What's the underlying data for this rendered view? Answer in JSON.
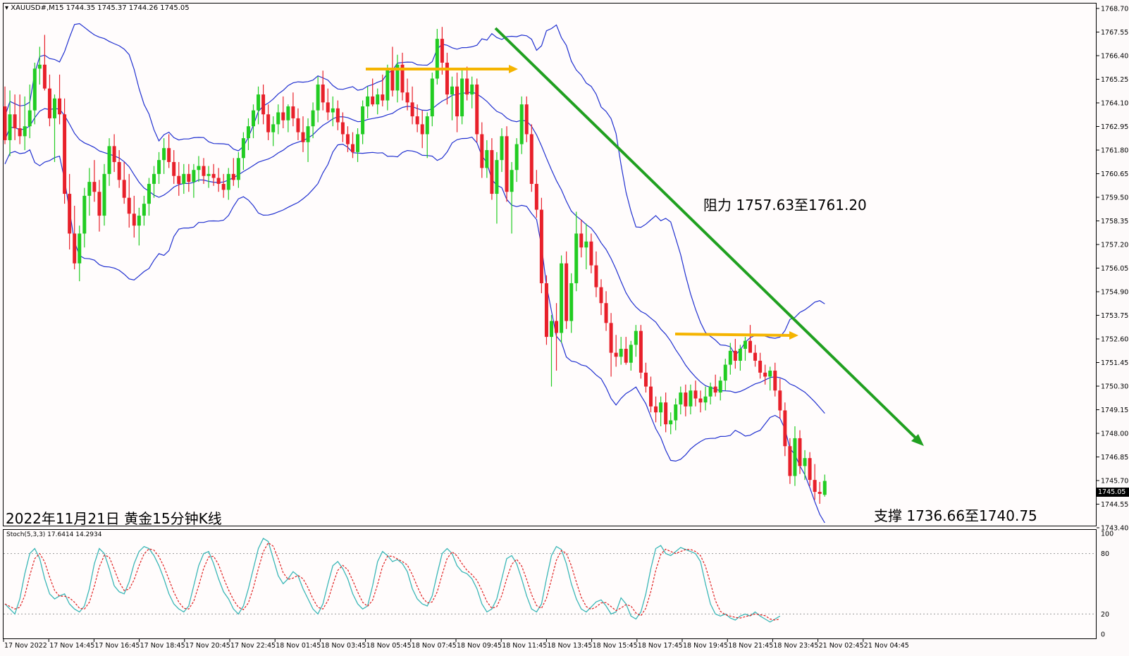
{
  "header": {
    "symbol": "XAUUSD#,M15",
    "ohlc": "1744.35 1745.37 1744.26 1745.05"
  },
  "annotations": {
    "title": "2022年11月21日 黄金15分钟K线",
    "resistance": "阻力 1757.63至1761.20",
    "support": "支撑 1736.66至1740.75"
  },
  "price_axis": {
    "ticks": [
      "1768.70",
      "1767.55",
      "1766.40",
      "1765.25",
      "1764.10",
      "1762.95",
      "1761.80",
      "1760.65",
      "1759.50",
      "1758.35",
      "1757.20",
      "1756.05",
      "1754.90",
      "1753.75",
      "1752.60",
      "1751.45",
      "1750.30",
      "1749.15",
      "1748.00",
      "1746.85",
      "1745.70",
      "1744.55",
      "1743.40"
    ],
    "current_price": "1745.05"
  },
  "stoch": {
    "label": "Stoch(5,3,3) 17.6414 14.2934",
    "levels": [
      "100",
      "80",
      "20",
      "0"
    ]
  },
  "time_axis": {
    "labels": [
      "17 Nov 2022",
      "17 Nov 14:45",
      "17 Nov 16:45",
      "17 Nov 18:45",
      "17 Nov 20:45",
      "17 Nov 22:45",
      "18 Nov 01:45",
      "18 Nov 03:45",
      "18 Nov 05:45",
      "18 Nov 07:45",
      "18 Nov 09:45",
      "18 Nov 11:45",
      "18 Nov 13:45",
      "18 Nov 15:45",
      "18 Nov 17:45",
      "18 Nov 19:45",
      "18 Nov 21:45",
      "18 Nov 23:45",
      "21 Nov 02:45",
      "21 Nov 04:45"
    ]
  },
  "colors": {
    "up_candle": "#22cc22",
    "down_candle": "#e8202a",
    "bands": "#2030d0",
    "trendline": "#20a020",
    "arrows": "#f5b400",
    "stoch_main": "#3bb7b7",
    "stoch_signal": "#e02020"
  },
  "chart_data": {
    "type": "candlestick",
    "timeframe": "M15",
    "symbol": "XAUUSD",
    "ylim": [
      1742.8,
      1768.9
    ],
    "last_close": 1745.05,
    "candles": [
      {
        "o": 1763.9,
        "h": 1764.9,
        "l": 1762.0,
        "c": 1762.2
      },
      {
        "o": 1762.2,
        "h": 1764.7,
        "l": 1761.4,
        "c": 1763.5
      },
      {
        "o": 1763.5,
        "h": 1764.5,
        "l": 1762.2,
        "c": 1762.8
      },
      {
        "o": 1762.8,
        "h": 1764.5,
        "l": 1762.0,
        "c": 1762.4
      },
      {
        "o": 1762.4,
        "h": 1764.4,
        "l": 1761.7,
        "c": 1762.9
      },
      {
        "o": 1762.9,
        "h": 1765.0,
        "l": 1762.3,
        "c": 1763.7
      },
      {
        "o": 1763.7,
        "h": 1766.1,
        "l": 1763.0,
        "c": 1765.8
      },
      {
        "o": 1765.8,
        "h": 1766.9,
        "l": 1765.0,
        "c": 1766.0
      },
      {
        "o": 1766.0,
        "h": 1767.5,
        "l": 1764.7,
        "c": 1764.8
      },
      {
        "o": 1764.8,
        "h": 1765.5,
        "l": 1762.9,
        "c": 1763.3
      },
      {
        "o": 1763.3,
        "h": 1764.5,
        "l": 1761.1,
        "c": 1764.3
      },
      {
        "o": 1764.3,
        "h": 1765.5,
        "l": 1763.0,
        "c": 1763.5
      },
      {
        "o": 1763.5,
        "h": 1764.3,
        "l": 1759.0,
        "c": 1759.5
      },
      {
        "o": 1759.5,
        "h": 1760.5,
        "l": 1756.7,
        "c": 1757.5
      },
      {
        "o": 1757.5,
        "h": 1758.9,
        "l": 1755.7,
        "c": 1756.0
      },
      {
        "o": 1756.0,
        "h": 1757.9,
        "l": 1755.1,
        "c": 1757.5
      },
      {
        "o": 1757.5,
        "h": 1759.8,
        "l": 1756.8,
        "c": 1759.4
      },
      {
        "o": 1759.4,
        "h": 1760.8,
        "l": 1758.4,
        "c": 1760.1
      },
      {
        "o": 1760.1,
        "h": 1761.2,
        "l": 1759.1,
        "c": 1759.6
      },
      {
        "o": 1759.6,
        "h": 1760.2,
        "l": 1757.6,
        "c": 1758.4
      },
      {
        "o": 1758.4,
        "h": 1761.0,
        "l": 1757.9,
        "c": 1760.5
      },
      {
        "o": 1760.5,
        "h": 1762.3,
        "l": 1759.9,
        "c": 1761.9
      },
      {
        "o": 1761.9,
        "h": 1762.5,
        "l": 1760.6,
        "c": 1761.1
      },
      {
        "o": 1761.1,
        "h": 1761.7,
        "l": 1759.8,
        "c": 1760.2
      },
      {
        "o": 1760.2,
        "h": 1761.1,
        "l": 1759.0,
        "c": 1759.3
      },
      {
        "o": 1759.3,
        "h": 1760.5,
        "l": 1757.8,
        "c": 1758.5
      },
      {
        "o": 1758.5,
        "h": 1759.4,
        "l": 1757.3,
        "c": 1757.9
      },
      {
        "o": 1757.9,
        "h": 1758.8,
        "l": 1756.9,
        "c": 1758.4
      },
      {
        "o": 1758.4,
        "h": 1759.4,
        "l": 1757.9,
        "c": 1759.0
      },
      {
        "o": 1759.0,
        "h": 1760.3,
        "l": 1758.4,
        "c": 1760.0
      },
      {
        "o": 1760.0,
        "h": 1760.9,
        "l": 1759.3,
        "c": 1760.5
      },
      {
        "o": 1760.5,
        "h": 1761.6,
        "l": 1760.0,
        "c": 1761.2
      },
      {
        "o": 1761.2,
        "h": 1762.3,
        "l": 1760.5,
        "c": 1761.8
      },
      {
        "o": 1761.8,
        "h": 1762.5,
        "l": 1760.8,
        "c": 1761.1
      },
      {
        "o": 1761.1,
        "h": 1761.7,
        "l": 1760.0,
        "c": 1760.4
      },
      {
        "o": 1760.4,
        "h": 1761.1,
        "l": 1759.4,
        "c": 1760.0
      },
      {
        "o": 1760.0,
        "h": 1761.0,
        "l": 1759.5,
        "c": 1760.5
      },
      {
        "o": 1760.5,
        "h": 1761.0,
        "l": 1759.6,
        "c": 1760.1
      },
      {
        "o": 1760.1,
        "h": 1761.0,
        "l": 1759.3,
        "c": 1760.7
      },
      {
        "o": 1760.7,
        "h": 1761.4,
        "l": 1760.1,
        "c": 1760.9
      },
      {
        "o": 1760.9,
        "h": 1761.3,
        "l": 1760.0,
        "c": 1760.4
      },
      {
        "o": 1760.4,
        "h": 1760.9,
        "l": 1759.8,
        "c": 1760.5
      },
      {
        "o": 1760.5,
        "h": 1761.0,
        "l": 1759.9,
        "c": 1760.3
      },
      {
        "o": 1760.3,
        "h": 1760.8,
        "l": 1759.6,
        "c": 1760.0
      },
      {
        "o": 1760.0,
        "h": 1760.5,
        "l": 1759.3,
        "c": 1759.7
      },
      {
        "o": 1759.7,
        "h": 1760.8,
        "l": 1759.2,
        "c": 1760.5
      },
      {
        "o": 1760.5,
        "h": 1761.3,
        "l": 1759.9,
        "c": 1760.2
      },
      {
        "o": 1760.2,
        "h": 1761.6,
        "l": 1759.8,
        "c": 1761.3
      },
      {
        "o": 1761.3,
        "h": 1762.6,
        "l": 1760.7,
        "c": 1762.3
      },
      {
        "o": 1762.3,
        "h": 1763.3,
        "l": 1761.7,
        "c": 1762.9
      },
      {
        "o": 1762.9,
        "h": 1764.0,
        "l": 1762.3,
        "c": 1763.7
      },
      {
        "o": 1763.7,
        "h": 1764.9,
        "l": 1763.0,
        "c": 1764.5
      },
      {
        "o": 1764.5,
        "h": 1765.0,
        "l": 1763.0,
        "c": 1763.5
      },
      {
        "o": 1763.5,
        "h": 1764.0,
        "l": 1762.2,
        "c": 1762.6
      },
      {
        "o": 1762.6,
        "h": 1763.4,
        "l": 1761.9,
        "c": 1763.0
      },
      {
        "o": 1763.0,
        "h": 1764.0,
        "l": 1762.5,
        "c": 1763.6
      },
      {
        "o": 1763.6,
        "h": 1764.4,
        "l": 1762.8,
        "c": 1763.2
      },
      {
        "o": 1763.2,
        "h": 1764.0,
        "l": 1762.6,
        "c": 1763.9
      },
      {
        "o": 1763.9,
        "h": 1764.6,
        "l": 1762.9,
        "c": 1763.3
      },
      {
        "o": 1763.3,
        "h": 1763.8,
        "l": 1762.2,
        "c": 1762.6
      },
      {
        "o": 1762.6,
        "h": 1763.4,
        "l": 1761.6,
        "c": 1762.1
      },
      {
        "o": 1762.1,
        "h": 1763.3,
        "l": 1761.1,
        "c": 1762.9
      },
      {
        "o": 1762.9,
        "h": 1764.1,
        "l": 1762.3,
        "c": 1763.7
      },
      {
        "o": 1763.7,
        "h": 1765.4,
        "l": 1763.1,
        "c": 1765.0
      },
      {
        "o": 1765.0,
        "h": 1765.7,
        "l": 1763.7,
        "c": 1764.1
      },
      {
        "o": 1764.1,
        "h": 1764.8,
        "l": 1763.2,
        "c": 1763.6
      },
      {
        "o": 1763.6,
        "h": 1764.4,
        "l": 1762.9,
        "c": 1763.8
      },
      {
        "o": 1763.8,
        "h": 1764.2,
        "l": 1762.7,
        "c": 1763.1
      },
      {
        "o": 1763.1,
        "h": 1763.6,
        "l": 1762.1,
        "c": 1762.5
      },
      {
        "o": 1762.5,
        "h": 1762.9,
        "l": 1761.6,
        "c": 1762.0
      },
      {
        "o": 1762.0,
        "h": 1762.6,
        "l": 1761.3,
        "c": 1761.6
      },
      {
        "o": 1761.6,
        "h": 1762.8,
        "l": 1761.1,
        "c": 1762.5
      },
      {
        "o": 1762.5,
        "h": 1764.2,
        "l": 1762.0,
        "c": 1763.9
      },
      {
        "o": 1763.9,
        "h": 1764.9,
        "l": 1763.3,
        "c": 1764.4
      },
      {
        "o": 1764.4,
        "h": 1765.3,
        "l": 1763.9,
        "c": 1764.0
      },
      {
        "o": 1764.0,
        "h": 1764.8,
        "l": 1763.5,
        "c": 1764.5
      },
      {
        "o": 1764.5,
        "h": 1765.5,
        "l": 1763.9,
        "c": 1764.2
      },
      {
        "o": 1764.2,
        "h": 1766.0,
        "l": 1763.7,
        "c": 1765.8
      },
      {
        "o": 1765.8,
        "h": 1766.9,
        "l": 1764.4,
        "c": 1764.7
      },
      {
        "o": 1764.7,
        "h": 1766.5,
        "l": 1764.1,
        "c": 1766.0
      },
      {
        "o": 1766.0,
        "h": 1766.6,
        "l": 1764.2,
        "c": 1764.6
      },
      {
        "o": 1764.6,
        "h": 1765.3,
        "l": 1763.7,
        "c": 1764.1
      },
      {
        "o": 1764.1,
        "h": 1764.9,
        "l": 1763.0,
        "c": 1763.4
      },
      {
        "o": 1763.4,
        "h": 1764.0,
        "l": 1762.6,
        "c": 1763.0
      },
      {
        "o": 1763.0,
        "h": 1763.7,
        "l": 1761.8,
        "c": 1762.5
      },
      {
        "o": 1762.5,
        "h": 1763.6,
        "l": 1761.3,
        "c": 1763.4
      },
      {
        "o": 1763.4,
        "h": 1765.6,
        "l": 1762.9,
        "c": 1765.3
      },
      {
        "o": 1765.3,
        "h": 1767.8,
        "l": 1765.0,
        "c": 1767.3
      },
      {
        "o": 1767.3,
        "h": 1767.9,
        "l": 1765.5,
        "c": 1766.1
      },
      {
        "o": 1766.1,
        "h": 1766.6,
        "l": 1764.0,
        "c": 1764.5
      },
      {
        "o": 1764.5,
        "h": 1765.4,
        "l": 1763.2,
        "c": 1764.9
      },
      {
        "o": 1764.9,
        "h": 1765.6,
        "l": 1762.6,
        "c": 1763.4
      },
      {
        "o": 1763.4,
        "h": 1765.8,
        "l": 1763.0,
        "c": 1765.3
      },
      {
        "o": 1765.3,
        "h": 1765.9,
        "l": 1764.2,
        "c": 1764.5
      },
      {
        "o": 1764.5,
        "h": 1765.4,
        "l": 1763.8,
        "c": 1765.0
      },
      {
        "o": 1765.0,
        "h": 1765.3,
        "l": 1762.1,
        "c": 1762.5
      },
      {
        "o": 1762.5,
        "h": 1763.1,
        "l": 1760.3,
        "c": 1760.8
      },
      {
        "o": 1760.8,
        "h": 1762.2,
        "l": 1760.3,
        "c": 1761.7
      },
      {
        "o": 1761.7,
        "h": 1762.3,
        "l": 1759.2,
        "c": 1759.5
      },
      {
        "o": 1759.5,
        "h": 1761.6,
        "l": 1758.0,
        "c": 1761.2
      },
      {
        "o": 1761.2,
        "h": 1762.8,
        "l": 1760.6,
        "c": 1762.4
      },
      {
        "o": 1762.4,
        "h": 1762.9,
        "l": 1759.1,
        "c": 1759.6
      },
      {
        "o": 1759.6,
        "h": 1761.1,
        "l": 1757.5,
        "c": 1760.7
      },
      {
        "o": 1760.7,
        "h": 1762.3,
        "l": 1760.1,
        "c": 1762.0
      },
      {
        "o": 1762.0,
        "h": 1764.4,
        "l": 1761.5,
        "c": 1764.0
      },
      {
        "o": 1764.0,
        "h": 1764.4,
        "l": 1762.1,
        "c": 1762.5
      },
      {
        "o": 1762.5,
        "h": 1763.0,
        "l": 1759.6,
        "c": 1760.0
      },
      {
        "o": 1760.0,
        "h": 1760.7,
        "l": 1758.3,
        "c": 1758.7
      },
      {
        "o": 1758.7,
        "h": 1759.3,
        "l": 1754.5,
        "c": 1755.0
      },
      {
        "o": 1755.0,
        "h": 1755.4,
        "l": 1751.9,
        "c": 1752.3
      },
      {
        "o": 1752.3,
        "h": 1753.4,
        "l": 1749.8,
        "c": 1753.1
      },
      {
        "o": 1753.1,
        "h": 1754.0,
        "l": 1750.6,
        "c": 1752.5
      },
      {
        "o": 1752.5,
        "h": 1756.4,
        "l": 1752.0,
        "c": 1756.0
      },
      {
        "o": 1756.0,
        "h": 1756.6,
        "l": 1752.7,
        "c": 1753.1
      },
      {
        "o": 1753.1,
        "h": 1755.5,
        "l": 1752.5,
        "c": 1755.0
      },
      {
        "o": 1755.0,
        "h": 1758.6,
        "l": 1754.6,
        "c": 1757.5
      },
      {
        "o": 1757.5,
        "h": 1758.2,
        "l": 1756.3,
        "c": 1756.8
      },
      {
        "o": 1756.8,
        "h": 1758.0,
        "l": 1755.7,
        "c": 1757.1
      },
      {
        "o": 1757.1,
        "h": 1757.5,
        "l": 1755.5,
        "c": 1755.9
      },
      {
        "o": 1755.9,
        "h": 1756.6,
        "l": 1754.3,
        "c": 1754.8
      },
      {
        "o": 1754.8,
        "h": 1755.2,
        "l": 1753.4,
        "c": 1754.0
      },
      {
        "o": 1754.0,
        "h": 1754.6,
        "l": 1752.6,
        "c": 1753.0
      },
      {
        "o": 1753.0,
        "h": 1753.5,
        "l": 1750.3,
        "c": 1751.5
      },
      {
        "o": 1751.5,
        "h": 1752.4,
        "l": 1750.8,
        "c": 1751.3
      },
      {
        "o": 1751.3,
        "h": 1752.3,
        "l": 1750.9,
        "c": 1751.7
      },
      {
        "o": 1751.7,
        "h": 1752.3,
        "l": 1750.9,
        "c": 1751.0
      },
      {
        "o": 1751.0,
        "h": 1752.1,
        "l": 1750.6,
        "c": 1751.9
      },
      {
        "o": 1751.9,
        "h": 1752.9,
        "l": 1751.3,
        "c": 1752.6
      },
      {
        "o": 1752.6,
        "h": 1752.9,
        "l": 1750.2,
        "c": 1750.5
      },
      {
        "o": 1750.5,
        "h": 1751.0,
        "l": 1749.5,
        "c": 1749.8
      },
      {
        "o": 1749.8,
        "h": 1750.3,
        "l": 1748.5,
        "c": 1748.8
      },
      {
        "o": 1748.8,
        "h": 1749.3,
        "l": 1748.0,
        "c": 1748.5
      },
      {
        "o": 1748.5,
        "h": 1749.3,
        "l": 1747.8,
        "c": 1749.0
      },
      {
        "o": 1749.0,
        "h": 1749.5,
        "l": 1747.5,
        "c": 1747.9
      },
      {
        "o": 1747.9,
        "h": 1748.5,
        "l": 1747.4,
        "c": 1748.1
      },
      {
        "o": 1748.1,
        "h": 1749.2,
        "l": 1747.6,
        "c": 1748.9
      },
      {
        "o": 1748.9,
        "h": 1749.8,
        "l": 1748.4,
        "c": 1749.5
      },
      {
        "o": 1749.5,
        "h": 1749.9,
        "l": 1748.3,
        "c": 1748.8
      },
      {
        "o": 1748.8,
        "h": 1749.9,
        "l": 1748.4,
        "c": 1749.6
      },
      {
        "o": 1749.6,
        "h": 1750.1,
        "l": 1748.8,
        "c": 1749.2
      },
      {
        "o": 1749.2,
        "h": 1749.6,
        "l": 1748.5,
        "c": 1749.0
      },
      {
        "o": 1749.0,
        "h": 1749.8,
        "l": 1748.6,
        "c": 1749.3
      },
      {
        "o": 1749.3,
        "h": 1750.0,
        "l": 1748.9,
        "c": 1749.8
      },
      {
        "o": 1749.8,
        "h": 1750.4,
        "l": 1749.3,
        "c": 1749.5
      },
      {
        "o": 1749.5,
        "h": 1750.3,
        "l": 1749.1,
        "c": 1750.1
      },
      {
        "o": 1750.1,
        "h": 1751.2,
        "l": 1749.6,
        "c": 1750.9
      },
      {
        "o": 1750.9,
        "h": 1752.0,
        "l": 1750.4,
        "c": 1751.6
      },
      {
        "o": 1751.6,
        "h": 1752.2,
        "l": 1750.7,
        "c": 1751.1
      },
      {
        "o": 1751.1,
        "h": 1751.9,
        "l": 1750.6,
        "c": 1751.7
      },
      {
        "o": 1751.7,
        "h": 1752.3,
        "l": 1751.1,
        "c": 1752.1
      },
      {
        "o": 1752.1,
        "h": 1752.9,
        "l": 1751.6,
        "c": 1751.5
      },
      {
        "o": 1751.5,
        "h": 1751.9,
        "l": 1750.8,
        "c": 1751.1
      },
      {
        "o": 1751.1,
        "h": 1751.5,
        "l": 1750.2,
        "c": 1750.5
      },
      {
        "o": 1750.5,
        "h": 1750.9,
        "l": 1749.9,
        "c": 1750.3
      },
      {
        "o": 1750.3,
        "h": 1750.8,
        "l": 1749.6,
        "c": 1750.6
      },
      {
        "o": 1750.6,
        "h": 1751.0,
        "l": 1749.3,
        "c": 1749.6
      },
      {
        "o": 1749.6,
        "h": 1750.2,
        "l": 1748.2,
        "c": 1748.6
      },
      {
        "o": 1748.6,
        "h": 1749.0,
        "l": 1746.3,
        "c": 1746.8
      },
      {
        "o": 1746.8,
        "h": 1747.2,
        "l": 1744.9,
        "c": 1745.3
      },
      {
        "o": 1745.3,
        "h": 1747.8,
        "l": 1744.8,
        "c": 1747.2
      },
      {
        "o": 1747.2,
        "h": 1747.6,
        "l": 1745.4,
        "c": 1745.8
      },
      {
        "o": 1745.8,
        "h": 1746.6,
        "l": 1745.1,
        "c": 1746.2
      },
      {
        "o": 1746.2,
        "h": 1746.5,
        "l": 1744.8,
        "c": 1745.1
      },
      {
        "o": 1745.1,
        "h": 1745.9,
        "l": 1744.1,
        "c": 1744.5
      },
      {
        "o": 1744.5,
        "h": 1745.0,
        "l": 1743.9,
        "c": 1744.4
      },
      {
        "o": 1744.35,
        "h": 1745.37,
        "l": 1744.26,
        "c": 1745.05
      }
    ],
    "stoch_k": [
      30,
      25,
      20,
      35,
      60,
      80,
      85,
      75,
      55,
      40,
      35,
      38,
      40,
      30,
      25,
      22,
      28,
      45,
      70,
      85,
      80,
      65,
      48,
      42,
      40,
      52,
      70,
      82,
      87,
      85,
      78,
      68,
      55,
      40,
      30,
      25,
      22,
      28,
      48,
      68,
      80,
      82,
      70,
      55,
      42,
      35,
      25,
      20,
      28,
      45,
      65,
      85,
      95,
      92,
      75,
      58,
      50,
      55,
      62,
      58,
      45,
      35,
      25,
      20,
      30,
      50,
      68,
      72,
      65,
      55,
      40,
      30,
      25,
      28,
      48,
      72,
      82,
      78,
      72,
      74,
      70,
      62,
      45,
      35,
      30,
      28,
      38,
      60,
      80,
      85,
      80,
      68,
      62,
      60,
      55,
      45,
      30,
      22,
      25,
      35,
      55,
      75,
      78,
      70,
      55,
      38,
      25,
      22,
      30,
      55,
      78,
      87,
      84,
      70,
      50,
      35,
      25,
      22,
      27,
      32,
      34,
      28,
      20,
      22,
      36,
      30,
      18,
      15,
      22,
      40,
      65,
      85,
      88,
      80,
      78,
      82,
      86,
      84,
      82,
      80,
      72,
      50,
      30,
      20,
      18,
      20,
      16,
      14,
      18,
      20,
      18,
      22,
      18,
      15,
      12,
      15,
      18
    ]
  }
}
